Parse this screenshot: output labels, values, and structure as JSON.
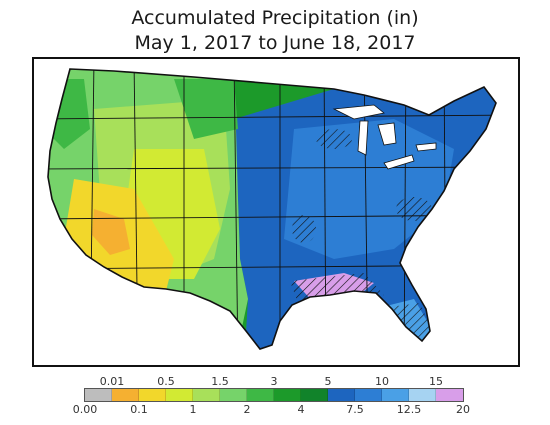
{
  "title": {
    "line1": "Accumulated Precipitation (in)",
    "line2": "May 1, 2017 to June 18, 2017"
  },
  "legend": {
    "bins": [
      {
        "label": "0.00",
        "color": "#bdbdbd"
      },
      {
        "label": "0.01",
        "color": "#f5b031"
      },
      {
        "label": "0.1",
        "color": "#f2d72b"
      },
      {
        "label": "0.5",
        "color": "#d2ea33"
      },
      {
        "label": "1",
        "color": "#a8e05a"
      },
      {
        "label": "1.5",
        "color": "#76d36a"
      },
      {
        "label": "2",
        "color": "#3eb845"
      },
      {
        "label": "3",
        "color": "#1c9a2a"
      },
      {
        "label": "4",
        "color": "#11832a"
      },
      {
        "label": "5",
        "color": "#1d65bf"
      },
      {
        "label": "7.5",
        "color": "#2d7ed4"
      },
      {
        "label": "10",
        "color": "#4aa0e6"
      },
      {
        "label": "12.5",
        "color": "#a6d3f2"
      },
      {
        "label": "15",
        "color": "#d89ee9"
      },
      {
        "label": "20",
        "color": ""
      }
    ]
  }
}
